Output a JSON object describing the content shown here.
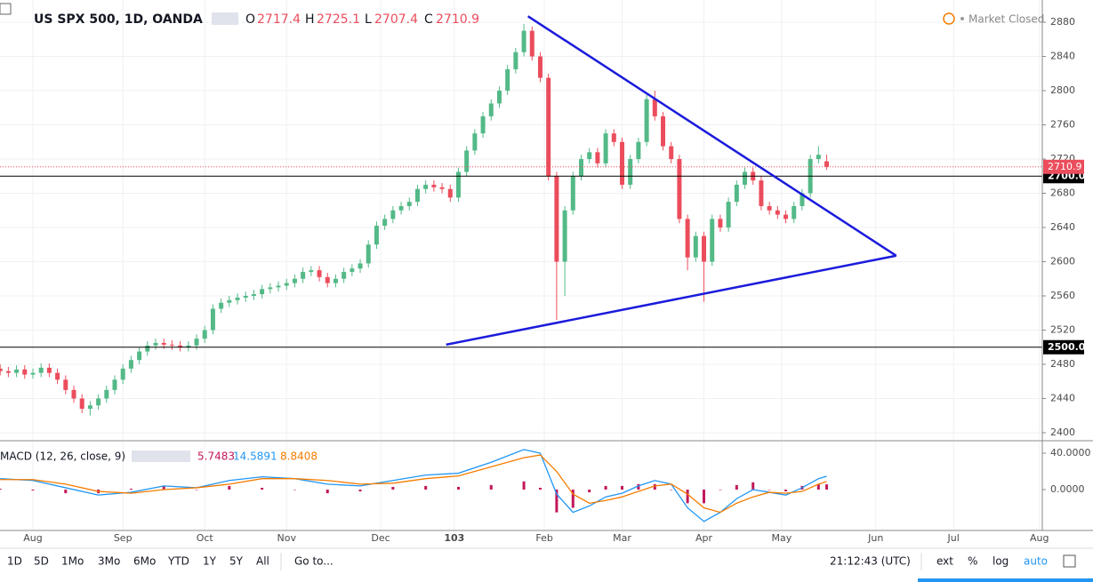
{
  "ui": {
    "symbol": "US SPX 500, 1D, OANDA",
    "ohlc_letters": [
      "O",
      "H",
      "L",
      "C"
    ],
    "status": "Market Closed",
    "macd_title": "MACD (12, 26, close, 9)",
    "ranges": [
      "1D",
      "5D",
      "1Mo",
      "3Mo",
      "6Mo",
      "YTD",
      "1Y",
      "5Y",
      "All"
    ],
    "goto": "Go to...",
    "clock": "21:12:43 (UTC)",
    "options": [
      "ext",
      "%",
      "log",
      "auto"
    ]
  },
  "chart_data": [
    {
      "type": "candlestick",
      "up_color": "#53b987",
      "down_color": "#eb4d5c",
      "grid": true,
      "x": [
        -8,
        -6,
        -4,
        -2,
        0,
        2,
        4,
        6,
        8,
        10,
        12,
        14,
        16,
        18,
        20,
        22,
        24,
        26,
        28,
        30,
        32,
        34,
        36,
        38,
        40,
        42,
        44,
        46,
        48,
        50,
        52,
        54,
        56,
        58,
        60,
        62,
        64,
        66,
        68,
        70,
        72,
        74,
        76,
        78,
        80,
        82,
        84,
        86,
        88,
        90,
        92,
        94,
        96,
        98,
        100,
        102,
        104,
        106,
        108,
        110,
        112,
        114,
        116,
        118,
        120,
        122,
        124,
        126,
        128,
        130,
        132,
        134,
        136,
        138,
        140,
        142,
        144,
        146,
        148,
        150,
        152,
        154,
        156,
        158,
        160,
        162,
        164,
        166,
        168,
        170,
        172,
        174,
        176,
        178,
        180,
        182,
        184,
        186,
        188,
        190,
        192,
        194
      ],
      "open": [
        2475,
        2472,
        2470,
        2474,
        2468,
        2470,
        2476,
        2470,
        2462,
        2450,
        2440,
        2428,
        2432,
        2440,
        2450,
        2462,
        2475,
        2485,
        2495,
        2502,
        2505,
        2503,
        2502,
        2500,
        2502,
        2510,
        2520,
        2545,
        2552,
        2555,
        2558,
        2560,
        2562,
        2568,
        2570,
        2572,
        2575,
        2580,
        2588,
        2590,
        2582,
        2575,
        2580,
        2588,
        2592,
        2598,
        2620,
        2642,
        2650,
        2660,
        2665,
        2670,
        2685,
        2690,
        2687,
        2685,
        2675,
        2705,
        2730,
        2750,
        2770,
        2785,
        2800,
        2825,
        2845,
        2870,
        2840,
        2815,
        2700,
        2600,
        2660,
        2700,
        2720,
        2728,
        2715,
        2750,
        2740,
        2690,
        2720,
        2740,
        2790,
        2770,
        2735,
        2720,
        2650,
        2605,
        2630,
        2600,
        2650,
        2640,
        2670,
        2690,
        2705,
        2695,
        2665,
        2660,
        2655,
        2650,
        2665,
        2680,
        2720,
        2717.4
      ],
      "high": [
        2480,
        2477,
        2479,
        2479,
        2475,
        2481,
        2481,
        2475,
        2467,
        2455,
        2445,
        2437,
        2445,
        2455,
        2467,
        2480,
        2490,
        2500,
        2507,
        2510,
        2510,
        2508,
        2507,
        2507,
        2515,
        2525,
        2550,
        2557,
        2560,
        2563,
        2565,
        2567,
        2573,
        2575,
        2577,
        2580,
        2585,
        2593,
        2595,
        2595,
        2587,
        2585,
        2593,
        2597,
        2603,
        2625,
        2647,
        2655,
        2665,
        2670,
        2675,
        2690,
        2695,
        2695,
        2692,
        2690,
        2710,
        2735,
        2755,
        2775,
        2790,
        2805,
        2830,
        2850,
        2878,
        2875,
        2845,
        2820,
        2705,
        2665,
        2705,
        2725,
        2733,
        2733,
        2755,
        2755,
        2745,
        2725,
        2745,
        2795,
        2800,
        2775,
        2740,
        2725,
        2655,
        2635,
        2635,
        2655,
        2655,
        2675,
        2695,
        2710,
        2710,
        2700,
        2670,
        2665,
        2660,
        2670,
        2685,
        2725,
        2735,
        2725.1
      ],
      "low": [
        2467,
        2465,
        2465,
        2463,
        2463,
        2465,
        2465,
        2457,
        2445,
        2435,
        2423,
        2420,
        2427,
        2435,
        2445,
        2457,
        2470,
        2480,
        2490,
        2497,
        2498,
        2497,
        2495,
        2495,
        2497,
        2505,
        2515,
        2540,
        2547,
        2550,
        2553,
        2555,
        2557,
        2563,
        2565,
        2567,
        2570,
        2575,
        2583,
        2577,
        2570,
        2570,
        2575,
        2583,
        2587,
        2593,
        2615,
        2637,
        2645,
        2655,
        2660,
        2665,
        2680,
        2682,
        2680,
        2670,
        2670,
        2700,
        2725,
        2745,
        2765,
        2780,
        2795,
        2820,
        2840,
        2835,
        2810,
        2695,
        2532,
        2560,
        2655,
        2695,
        2715,
        2710,
        2710,
        2735,
        2685,
        2685,
        2715,
        2735,
        2765,
        2730,
        2715,
        2645,
        2590,
        2600,
        2553,
        2595,
        2635,
        2635,
        2665,
        2685,
        2690,
        2660,
        2655,
        2650,
        2645,
        2645,
        2660,
        2675,
        2715,
        2707.4
      ],
      "close": [
        2472,
        2470,
        2474,
        2468,
        2470,
        2476,
        2470,
        2462,
        2450,
        2440,
        2428,
        2432,
        2440,
        2450,
        2462,
        2475,
        2485,
        2495,
        2502,
        2505,
        2503,
        2502,
        2500,
        2502,
        2510,
        2520,
        2545,
        2552,
        2555,
        2558,
        2560,
        2562,
        2568,
        2570,
        2572,
        2575,
        2580,
        2588,
        2590,
        2582,
        2575,
        2580,
        2588,
        2592,
        2598,
        2620,
        2642,
        2650,
        2660,
        2665,
        2670,
        2685,
        2690,
        2687,
        2685,
        2675,
        2705,
        2730,
        2750,
        2770,
        2785,
        2800,
        2825,
        2845,
        2870,
        2840,
        2815,
        2700,
        2600,
        2660,
        2700,
        2720,
        2728,
        2715,
        2750,
        2740,
        2690,
        2720,
        2740,
        2790,
        2770,
        2735,
        2720,
        2650,
        2605,
        2630,
        2600,
        2650,
        2640,
        2670,
        2690,
        2705,
        2695,
        2665,
        2660,
        2655,
        2650,
        2665,
        2680,
        2720,
        2725,
        2710.9
      ],
      "xlim": [
        -8.04,
        246.7
      ],
      "ylim": [
        2391.7,
        2906
      ],
      "xticks": [
        {
          "value": 0,
          "label": "Aug"
        },
        {
          "value": 22,
          "label": "Sep"
        },
        {
          "value": 42,
          "label": "Oct"
        },
        {
          "value": 62,
          "label": "Nov"
        },
        {
          "value": 85,
          "label": "Dec"
        },
        103,
        {
          "value": 125,
          "label": "Feb"
        },
        {
          "value": 144,
          "label": "Mar"
        },
        {
          "value": 164,
          "label": "Apr"
        },
        {
          "value": 183,
          "label": "May"
        },
        {
          "value": 206,
          "label": "Jun"
        },
        {
          "value": 225,
          "label": "Jul"
        },
        {
          "value": 246,
          "label": "Aug"
        }
      ],
      "yticks": [
        2400,
        2440,
        2480,
        2520,
        2560,
        2600,
        2640,
        2680,
        2720,
        2760,
        2800,
        2840,
        2880
      ],
      "hlines": [
        {
          "value": 2700,
          "label": "2700.0"
        },
        {
          "value": 2500,
          "label": "2500.0"
        }
      ],
      "last_price": 2710.9,
      "trendline_color": "#1b1bdc",
      "trendlines": [
        {
          "x": [
            121,
            211
          ],
          "y": [
            2887,
            2607
          ]
        },
        {
          "x": [
            101,
            211
          ],
          "y": [
            2503,
            2607
          ]
        }
      ]
    },
    {
      "type": "macd",
      "macd_color": "#2196f3",
      "signal_color": "#f57c00",
      "histogram_color": "#c2185b",
      "x": [
        -8,
        0,
        8,
        16,
        24,
        32,
        40,
        48,
        56,
        64,
        72,
        80,
        88,
        96,
        104,
        112,
        120,
        124,
        128,
        132,
        136,
        140,
        144,
        148,
        152,
        156,
        160,
        164,
        168,
        172,
        176,
        180,
        184,
        188,
        192,
        194
      ],
      "macd": [
        12,
        10,
        2,
        -6,
        -3,
        4,
        2,
        10,
        14,
        12,
        6,
        4,
        10,
        16,
        18,
        30,
        44,
        40,
        -5,
        -25,
        -18,
        -8,
        -4,
        4,
        10,
        6,
        -20,
        -35,
        -25,
        -10,
        0,
        -3,
        -6,
        2,
        12,
        14.5891
      ],
      "signal": [
        11,
        11,
        6,
        -2,
        -4,
        0,
        2,
        6,
        12,
        12,
        10,
        6,
        7,
        12,
        15,
        25,
        35,
        38,
        20,
        -5,
        -15,
        -12,
        -8,
        -2,
        4,
        6,
        -5,
        -20,
        -25,
        -15,
        -8,
        -3,
        -4,
        -2,
        6,
        8.8408
      ],
      "histogram": [
        1,
        -1,
        -4,
        -4,
        1,
        4,
        0,
        4,
        2,
        0,
        -4,
        -2,
        3,
        4,
        3,
        5,
        9,
        2,
        -25,
        -20,
        -3,
        4,
        4,
        6,
        6,
        0,
        -15,
        -15,
        0,
        5,
        8,
        0,
        -2,
        4,
        6,
        5.7483
      ],
      "ylim": [
        -44.9,
        52.7
      ],
      "yticks": [
        {
          "value": 40,
          "label": "40.0000"
        },
        {
          "value": 0,
          "label": "0.0000"
        }
      ]
    }
  ]
}
